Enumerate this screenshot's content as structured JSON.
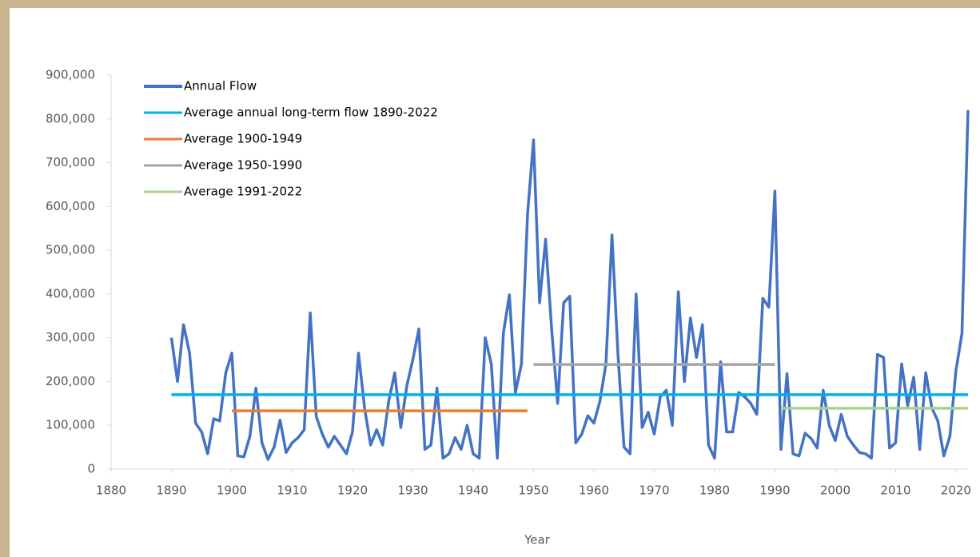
{
  "chart_data": {
    "type": "line",
    "xlabel": "Year",
    "xlim": [
      1880,
      2022
    ],
    "xticks": [
      1880,
      1890,
      1900,
      1910,
      1920,
      1930,
      1940,
      1950,
      1960,
      1970,
      1980,
      1990,
      2000,
      2010,
      2020
    ],
    "ylim": [
      0,
      900000
    ],
    "yticks": [
      0,
      {
        "value": 100000,
        "label": "100,000"
      },
      {
        "value": 200000,
        "label": "200,000"
      },
      {
        "value": 300000,
        "label": "300,000"
      },
      {
        "value": 400000,
        "label": "400,000"
      },
      {
        "value": 500000,
        "label": "500,000"
      },
      {
        "value": 600000,
        "label": "600,000"
      },
      {
        "value": 700000,
        "label": "700,000"
      },
      {
        "value": 800000,
        "label": "800,000"
      },
      {
        "value": 900000,
        "label": "900,000"
      }
    ],
    "grid": false,
    "legend": "top-left",
    "series": [
      {
        "name": "Annual Flow",
        "color": "#4472c4",
        "x": [
          1890,
          1891,
          1892,
          1893,
          1894,
          1895,
          1896,
          1897,
          1898,
          1899,
          1900,
          1901,
          1902,
          1903,
          1904,
          1905,
          1906,
          1907,
          1908,
          1909,
          1910,
          1911,
          1912,
          1913,
          1914,
          1915,
          1916,
          1917,
          1918,
          1919,
          1920,
          1921,
          1922,
          1923,
          1924,
          1925,
          1926,
          1927,
          1928,
          1929,
          1930,
          1931,
          1932,
          1933,
          1934,
          1935,
          1936,
          1937,
          1938,
          1939,
          1940,
          1941,
          1942,
          1943,
          1944,
          1945,
          1946,
          1947,
          1948,
          1949,
          1950,
          1951,
          1952,
          1953,
          1954,
          1955,
          1956,
          1957,
          1958,
          1959,
          1960,
          1961,
          1962,
          1963,
          1964,
          1965,
          1966,
          1967,
          1968,
          1969,
          1970,
          1971,
          1972,
          1973,
          1974,
          1975,
          1976,
          1977,
          1978,
          1979,
          1980,
          1981,
          1982,
          1983,
          1984,
          1985,
          1986,
          1987,
          1988,
          1989,
          1990,
          1991,
          1992,
          1993,
          1994,
          1995,
          1996,
          1997,
          1998,
          1999,
          2000,
          2001,
          2002,
          2003,
          2004,
          2005,
          2006,
          2007,
          2008,
          2009,
          2010,
          2011,
          2012,
          2013,
          2014,
          2015,
          2016,
          2017,
          2018,
          2019,
          2020,
          2021,
          2022
        ],
        "values": [
          300000,
          200000,
          330000,
          265000,
          105000,
          85000,
          35000,
          115000,
          110000,
          220000,
          265000,
          30000,
          28000,
          75000,
          185000,
          60000,
          22000,
          50000,
          112000,
          38000,
          60000,
          72000,
          90000,
          357000,
          120000,
          80000,
          50000,
          75000,
          55000,
          35000,
          85000,
          265000,
          140000,
          55000,
          90000,
          55000,
          155000,
          220000,
          95000,
          190000,
          250000,
          320000,
          45000,
          55000,
          185000,
          25000,
          35000,
          72000,
          45000,
          100000,
          35000,
          25000,
          300000,
          240000,
          25000,
          310000,
          398000,
          175000,
          240000,
          580000,
          752000,
          380000,
          525000,
          320000,
          150000,
          380000,
          395000,
          60000,
          80000,
          122000,
          105000,
          155000,
          240000,
          535000,
          260000,
          50000,
          35000,
          400000,
          95000,
          130000,
          80000,
          165000,
          180000,
          100000,
          405000,
          200000,
          345000,
          255000,
          330000,
          55000,
          25000,
          245000,
          85000,
          85000,
          175000,
          165000,
          150000,
          125000,
          390000,
          370000,
          635000,
          45000,
          218000,
          35000,
          30000,
          82000,
          70000,
          48000,
          180000,
          100000,
          65000,
          125000,
          75000,
          55000,
          38000,
          35000,
          25000,
          262000,
          255000,
          48000,
          60000,
          240000,
          145000,
          210000,
          45000,
          220000,
          140000,
          110000,
          30000,
          75000,
          225000,
          310000,
          820000
        ]
      },
      {
        "name": "Average annual long-term flow 1890-2022",
        "color": "#00b0f0",
        "x": [
          1890,
          2022
        ],
        "values": [
          170000,
          170000
        ]
      },
      {
        "name": "Average 1900-1949",
        "color": "#ed7d31",
        "x": [
          1900,
          1949
        ],
        "values": [
          133000,
          133000
        ]
      },
      {
        "name": "Average 1950-1990",
        "color": "#a5a5a5",
        "x": [
          1950,
          1990
        ],
        "values": [
          239000,
          239000
        ]
      },
      {
        "name": "Average 1991-2022",
        "color": "#a9d18e",
        "x": [
          1991,
          2022
        ],
        "values": [
          139000,
          139000
        ]
      }
    ]
  }
}
